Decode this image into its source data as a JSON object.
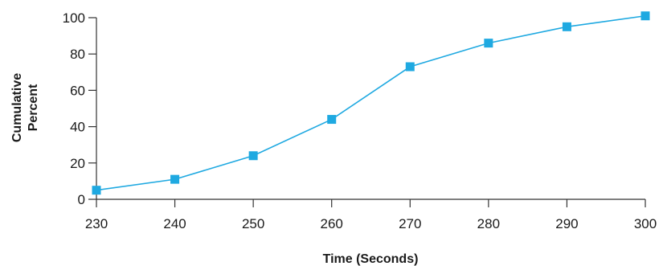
{
  "chart_data": {
    "type": "line",
    "title": "",
    "xlabel": "Time (Seconds)",
    "ylabel_lines": [
      "Cumulative",
      "Percent"
    ],
    "x": [
      230,
      240,
      250,
      260,
      270,
      280,
      290,
      300
    ],
    "series": [
      {
        "values": [
          5,
          11,
          24,
          44,
          73,
          86,
          95,
          101
        ],
        "color": "#1fa9e1",
        "marker": "square"
      }
    ],
    "xlim": [
      230,
      300
    ],
    "ylim": [
      0,
      100
    ],
    "xticks": [
      "230",
      "240",
      "250",
      "260",
      "270",
      "280",
      "290",
      "300"
    ],
    "yticks": [
      "0",
      "20",
      "40",
      "60",
      "80",
      "100"
    ],
    "grid": false,
    "axis_color": "#333333"
  }
}
